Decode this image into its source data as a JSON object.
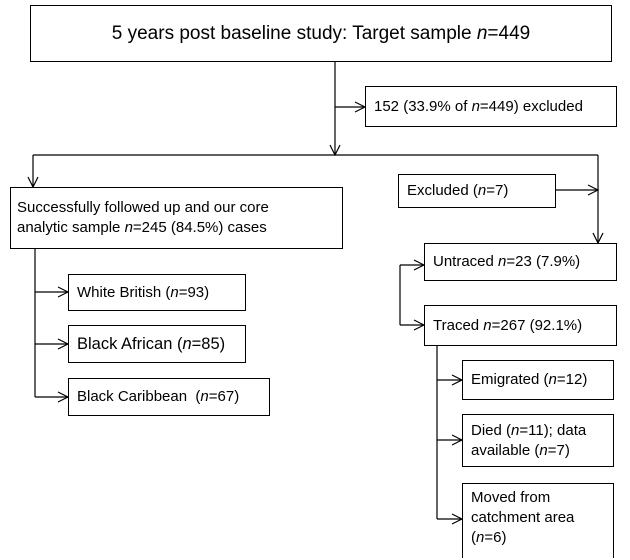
{
  "nodes": [
    {
      "lines": [
        [
          "5 years post baseline study: Target sample ",
          "n",
          "=449"
        ]
      ]
    },
    {
      "lines": [
        [
          "152 (33.9% of ",
          "n",
          "=449) excluded"
        ]
      ]
    },
    {
      "lines": [
        [
          "Successfully followed up and our core"
        ],
        [
          "analytic sample ",
          "n",
          "=245 (84.5%) cases"
        ]
      ]
    },
    {
      "lines": [
        [
          "White British (",
          "n",
          "=93)"
        ]
      ]
    },
    {
      "lines": [
        [
          "Black African (",
          "n",
          "=85)"
        ]
      ]
    },
    {
      "lines": [
        [
          "Black Caribbean  (",
          "n",
          "=67)"
        ]
      ]
    },
    {
      "lines": [
        [
          "Excluded (",
          "n",
          "=7)"
        ]
      ]
    },
    {
      "lines": [
        [
          "Untraced ",
          "n",
          "=23 (7.9%)"
        ]
      ]
    },
    {
      "lines": [
        [
          "Traced ",
          "n",
          "=267 (92.1%)"
        ]
      ]
    },
    {
      "lines": [
        [
          "Emigrated (",
          "n",
          "=12)"
        ]
      ]
    },
    {
      "lines": [
        [
          "Died (",
          "n",
          "=11); data"
        ],
        [
          "available (",
          "n",
          "=7)"
        ]
      ]
    },
    {
      "lines": [
        [
          "Moved from"
        ],
        [
          "catchment area"
        ],
        [
          "(",
          "n",
          "=6)"
        ]
      ]
    }
  ]
}
